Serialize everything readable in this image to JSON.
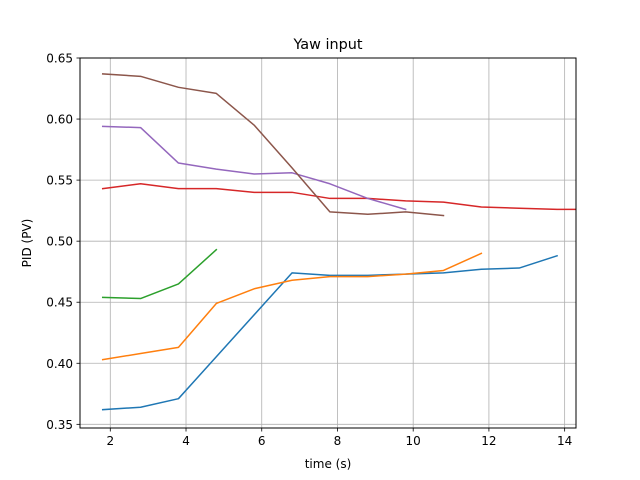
{
  "chart_data": {
    "type": "line",
    "title": "Yaw input",
    "xlabel": "time (s)",
    "ylabel": "PID (PV)",
    "xlim": [
      1.2,
      14.3
    ],
    "ylim": [
      0.347,
      0.65
    ],
    "grid": true,
    "x_ticks": [
      2,
      4,
      6,
      8,
      10,
      12,
      14
    ],
    "x_tick_labels": [
      "2",
      "4",
      "6",
      "8",
      "10",
      "12",
      "14"
    ],
    "y_ticks": [
      0.35,
      0.4,
      0.45,
      0.5,
      0.55,
      0.6,
      0.65
    ],
    "y_tick_labels": [
      "0.35",
      "0.40",
      "0.45",
      "0.50",
      "0.55",
      "0.60",
      "0.65"
    ],
    "series": [
      {
        "color": "#1f77b4",
        "x": [
          1.8,
          2.8,
          3.8,
          6.8,
          7.8,
          8.8,
          9.8,
          10.8,
          11.8,
          12.8,
          13.8
        ],
        "y": [
          0.362,
          0.364,
          0.371,
          0.474,
          0.472,
          0.472,
          0.473,
          0.474,
          0.477,
          0.478,
          0.488
        ]
      },
      {
        "color": "#ff7f0e",
        "x": [
          1.8,
          2.8,
          3.8,
          4.8,
          5.8,
          6.8,
          7.8,
          8.8,
          9.8,
          10.8,
          11.8
        ],
        "y": [
          0.403,
          0.408,
          0.413,
          0.449,
          0.461,
          0.468,
          0.471,
          0.471,
          0.473,
          0.476,
          0.49
        ]
      },
      {
        "color": "#2ca02c",
        "x": [
          1.8,
          2.8,
          3.8,
          4.8
        ],
        "y": [
          0.454,
          0.453,
          0.465,
          0.493
        ]
      },
      {
        "color": "#d62728",
        "x": [
          1.8,
          2.8,
          3.8,
          4.8,
          5.8,
          6.8,
          7.8,
          8.8,
          9.8,
          10.8,
          11.8,
          12.8,
          13.8,
          14.3
        ],
        "y": [
          0.543,
          0.547,
          0.543,
          0.543,
          0.54,
          0.54,
          0.535,
          0.535,
          0.533,
          0.532,
          0.528,
          0.527,
          0.526,
          0.526
        ]
      },
      {
        "color": "#9467bd",
        "x": [
          1.8,
          2.8,
          3.8,
          4.8,
          5.8,
          6.8,
          7.8,
          8.8,
          9.8
        ],
        "y": [
          0.594,
          0.593,
          0.564,
          0.559,
          0.555,
          0.556,
          0.547,
          0.535,
          0.526
        ]
      },
      {
        "color": "#8c564b",
        "x": [
          1.8,
          2.8,
          3.8,
          4.8,
          5.8,
          6.8,
          7.8,
          8.8,
          9.8,
          10.8
        ],
        "y": [
          0.637,
          0.635,
          0.626,
          0.621,
          0.595,
          0.56,
          0.524,
          0.522,
          0.524,
          0.521
        ]
      }
    ]
  }
}
